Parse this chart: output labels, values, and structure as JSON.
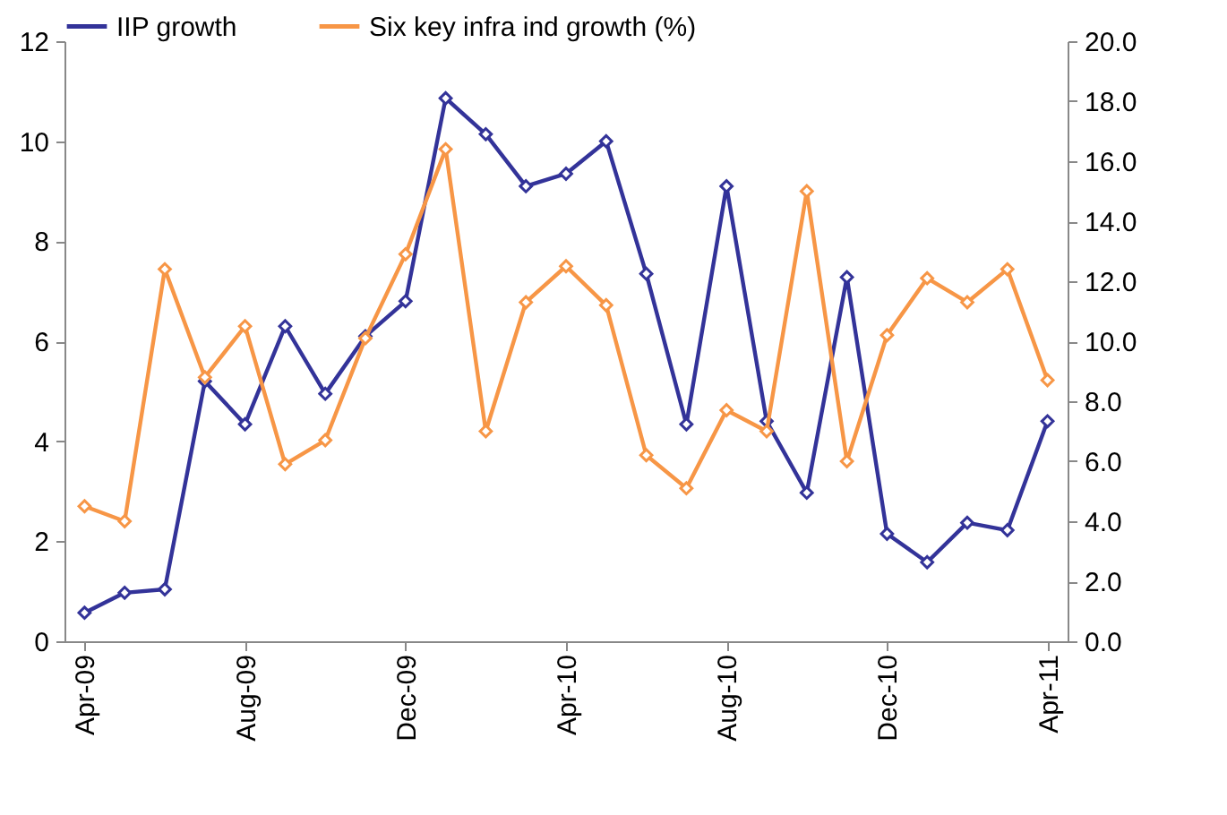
{
  "chart_data": {
    "type": "line",
    "categories": [
      "Apr-09",
      null,
      null,
      null,
      "Aug-09",
      null,
      null,
      null,
      "Dec-09",
      null,
      null,
      null,
      "Apr-10",
      null,
      null,
      null,
      "Aug-10",
      null,
      null,
      null,
      "Dec-10",
      null,
      null,
      null,
      "Apr-11"
    ],
    "series": [
      {
        "name": "IIP growth",
        "color": "#333399",
        "values": [
          0.57,
          0.97,
          1.04,
          5.2,
          4.34,
          6.3,
          4.95,
          6.1,
          6.8,
          10.86,
          10.14,
          9.1,
          9.35,
          10.0,
          7.35,
          4.34,
          9.1,
          4.4,
          2.97,
          7.28,
          2.15,
          1.58,
          2.37,
          2.22,
          4.4
        ]
      },
      {
        "name": "Six key infra ind growth (%)",
        "color": "#f79646",
        "axis": "y2",
        "values": [
          4.5,
          4.0,
          12.4,
          8.8,
          10.5,
          5.9,
          6.7,
          10.1,
          12.9,
          16.4,
          7.0,
          11.3,
          12.5,
          11.2,
          6.2,
          5.1,
          7.7,
          7.0,
          15.0,
          6.0,
          10.2,
          12.1,
          11.3,
          12.4,
          8.7
        ]
      }
    ],
    "ylim": [
      0,
      12
    ],
    "yticks": [
      0,
      2,
      4,
      6,
      8,
      10,
      12
    ],
    "y2lim": [
      0,
      20
    ],
    "y2ticks": [
      {
        "value": 0,
        "label": "0.0"
      },
      {
        "value": 2,
        "label": "2.0"
      },
      {
        "value": 4,
        "label": "4.0"
      },
      {
        "value": 6,
        "label": "6.0"
      },
      {
        "value": 8,
        "label": "8.0"
      },
      {
        "value": 10,
        "label": "10.0"
      },
      {
        "value": 12,
        "label": "12.0"
      },
      {
        "value": 14,
        "label": "14.0"
      },
      {
        "value": 16,
        "label": "16.0"
      },
      {
        "value": 18,
        "label": "18.0"
      },
      {
        "value": 20,
        "label": "20.0"
      }
    ],
    "marker": "diamond",
    "line_style": "solid",
    "legend": "top",
    "grid": false
  }
}
